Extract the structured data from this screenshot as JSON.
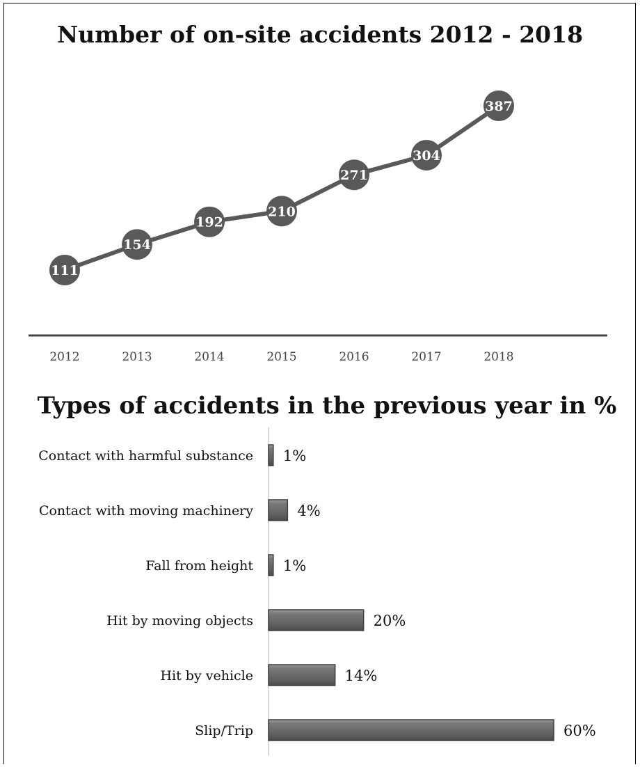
{
  "chart_data": [
    {
      "type": "line",
      "title": "Number of on-site accidents 2012 - 2018",
      "categories": [
        "2012",
        "2013",
        "2014",
        "2015",
        "2016",
        "2017",
        "2018"
      ],
      "series": [
        {
          "values": [
            111,
            154,
            192,
            210,
            271,
            304,
            387
          ]
        }
      ],
      "data_labels": true,
      "grid": false,
      "legend": "none",
      "line_color": "#595959"
    },
    {
      "type": "bar",
      "orientation": "horizontal",
      "title": "Types of accidents in the previous year in %",
      "categories": [
        "Contact with harmful substance",
        "Contact with moving machinery",
        "Fall from height",
        "Hit by moving objects",
        "Hit by vehicle",
        "Slip/Trip"
      ],
      "values": [
        1,
        4,
        1,
        20,
        14,
        60
      ],
      "value_labels": [
        "1%",
        "4%",
        "1%",
        "20%",
        "14%",
        "60%"
      ],
      "unit": "%",
      "grid": false,
      "legend": "none",
      "bar_color": "#6b6b6b"
    }
  ]
}
